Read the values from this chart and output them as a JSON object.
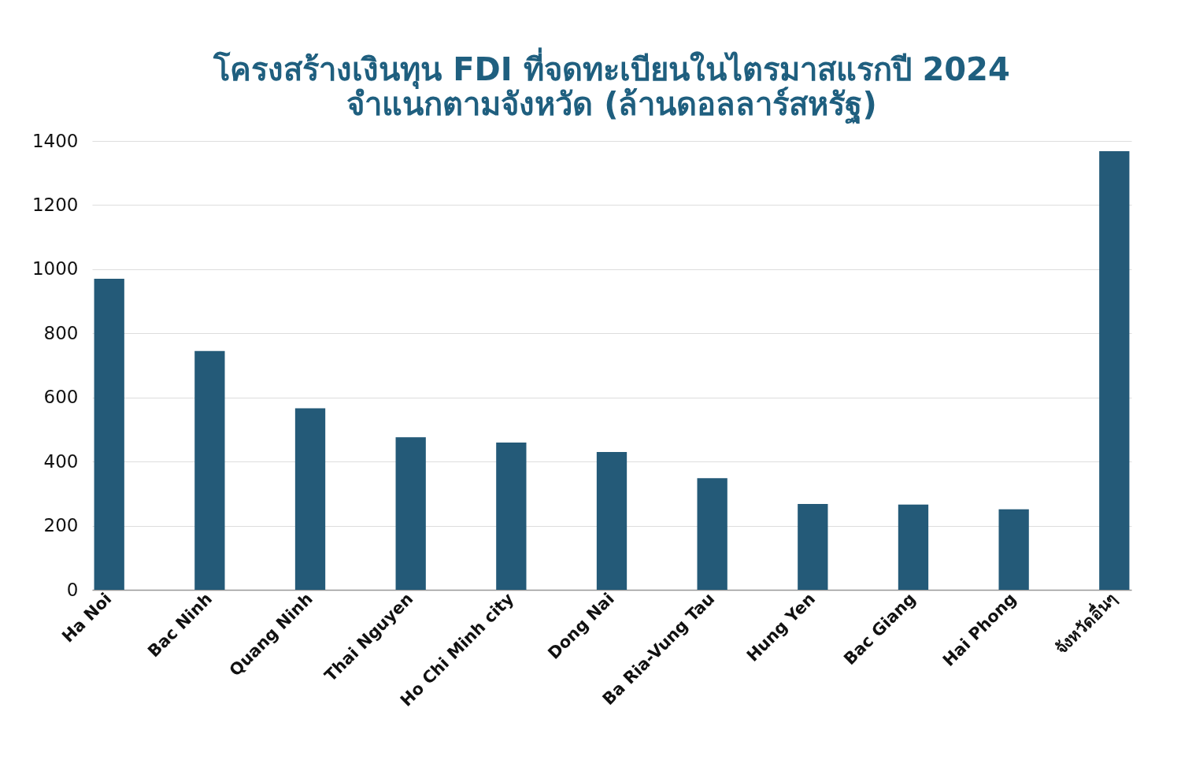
{
  "chart_data": {
    "type": "bar",
    "title": "โครงสร้างเงินทุน FDI ที่จดทะเบียนในไตรมาสแรกปี 2024",
    "subtitle": "จำแนกตามจังหวัด (ล้านดอลลาร์สหรัฐ)",
    "categories": [
      "Ha Noi",
      "Bac Ninh",
      "Quang Ninh",
      "Thai Nguyen",
      "Ho Chi Minh city",
      "Dong Nai",
      "Ba Ria-Vung Tau",
      "Hung Yen",
      "Bac Giang",
      "Hai Phong",
      "จังหวัดอื่นๆ"
    ],
    "values": [
      970,
      745,
      566,
      476,
      459,
      430,
      348,
      268,
      266,
      251,
      1368
    ],
    "color": "#245a78",
    "ylim": [
      0,
      1400
    ],
    "yticks": [
      0,
      200,
      400,
      600,
      800,
      1000,
      1200,
      1400
    ],
    "grid": "y"
  }
}
